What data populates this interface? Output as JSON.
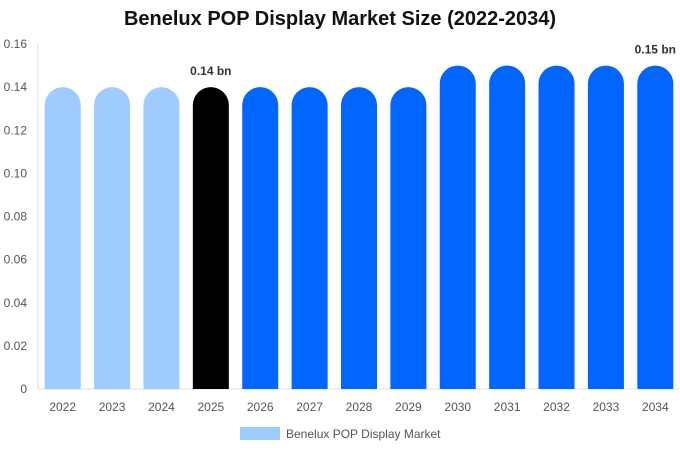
{
  "chart_data": {
    "type": "bar",
    "title": "Benelux POP Display Market Size (2022-2034)",
    "categories": [
      "2022",
      "2023",
      "2024",
      "2025",
      "2026",
      "2027",
      "2028",
      "2029",
      "2030",
      "2031",
      "2032",
      "2033",
      "2034"
    ],
    "series": [
      {
        "name": "Benelux POP Display Market",
        "values": [
          0.14,
          0.14,
          0.14,
          0.14,
          0.14,
          0.14,
          0.14,
          0.14,
          0.15,
          0.15,
          0.15,
          0.15,
          0.15
        ]
      }
    ],
    "ylim": [
      0,
      0.16
    ],
    "yticks": [
      "0",
      "0.02",
      "0.04",
      "0.06",
      "0.08",
      "0.10",
      "0.12",
      "0.14",
      "0.16"
    ],
    "data_labels": [
      {
        "category": "2025",
        "text": "0.14 bn"
      },
      {
        "category": "2034",
        "text": "0.15 bn"
      }
    ],
    "bar_colors": [
      "#a0cbff",
      "#a0cbff",
      "#a0cbff",
      "#000000",
      "#0066ff",
      "#0066ff",
      "#0066ff",
      "#0066ff",
      "#0066ff",
      "#0066ff",
      "#0066ff",
      "#0066ff",
      "#0066ff"
    ],
    "legend": {
      "position": "bottom",
      "color": "#a0cbff"
    },
    "grid": false
  }
}
